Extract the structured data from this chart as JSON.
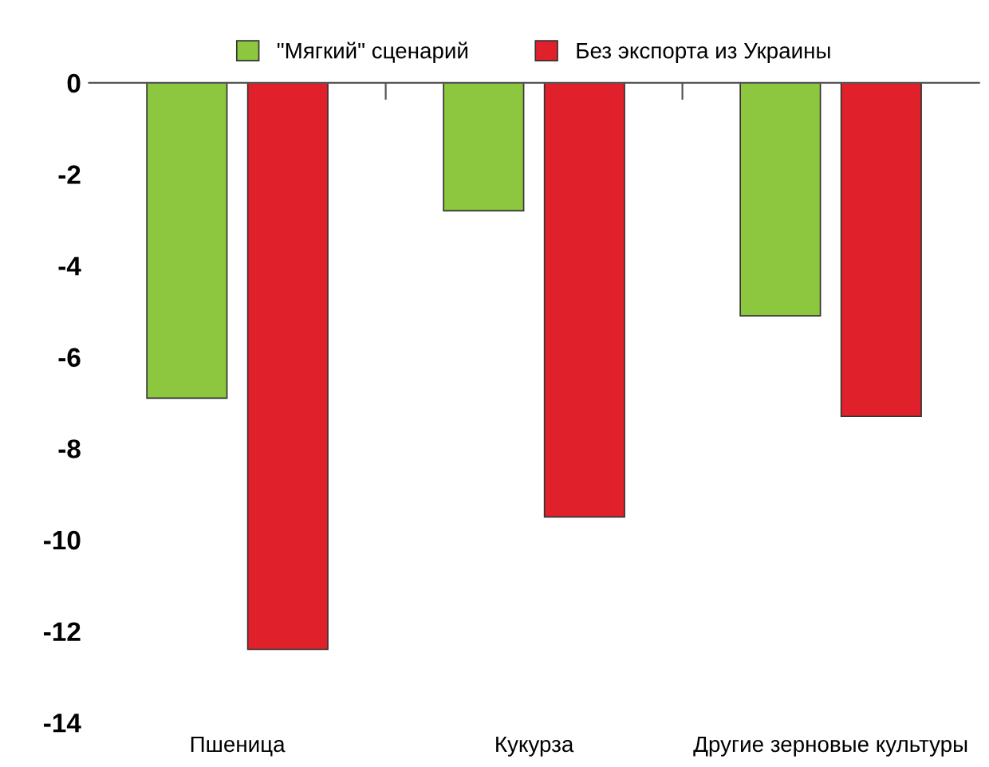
{
  "chart_data": {
    "type": "bar",
    "categories": [
      "Пшеница",
      "Кукурза",
      "Другие зерновые культуры"
    ],
    "series": [
      {
        "name": "\"Мягкий\" сценарий",
        "color": "#8dc63f",
        "values": [
          -6.9,
          -2.8,
          -5.1
        ]
      },
      {
        "name": "Без экспорта из Украины",
        "color": "#e0212b",
        "values": [
          -12.4,
          -9.5,
          -7.3
        ]
      }
    ],
    "ylim": [
      -14,
      0
    ],
    "yticks": [
      -14,
      -12,
      -10,
      -8,
      -6,
      -4,
      -2,
      0
    ],
    "grid": false,
    "legend": "top"
  }
}
